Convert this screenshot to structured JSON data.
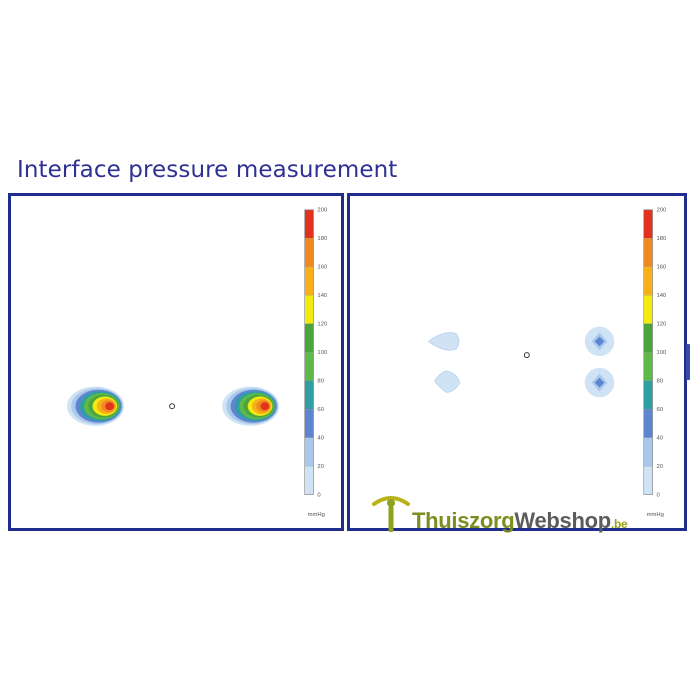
{
  "title": "Interface pressure measurement",
  "colors": {
    "frame": "#1f2d8f",
    "title": "#2e3192",
    "scale": [
      "#ffffff",
      "#cfe3f5",
      "#a9c8ec",
      "#5e86d0",
      "#2f9fa1",
      "#5fb84a",
      "#4aa53d",
      "#f2ea10",
      "#f8b01a",
      "#f08a1e",
      "#e0321e"
    ]
  },
  "watermark": {
    "part1": "Thuiszorg",
    "part2": "Webshop",
    "suffix": ".be"
  },
  "chart_data": [
    {
      "type": "heatmap",
      "title": "",
      "colorbar": {
        "ticks": [
          "200",
          "180",
          "160",
          "140",
          "120",
          "100",
          "80",
          "60",
          "40",
          "20",
          "0"
        ],
        "unit": "mmHg"
      },
      "hotspots": [
        {
          "name": "left-contact",
          "peak_mmHg": 200
        },
        {
          "name": "right-contact",
          "peak_mmHg": 200
        }
      ]
    },
    {
      "type": "heatmap",
      "title": "",
      "colorbar": {
        "ticks": [
          "200",
          "180",
          "160",
          "140",
          "120",
          "100",
          "80",
          "60",
          "40",
          "20",
          "0"
        ],
        "unit": "mmHg"
      },
      "hotspots": [
        {
          "name": "upper-left",
          "peak_mmHg": 20
        },
        {
          "name": "lower-left",
          "peak_mmHg": 20
        },
        {
          "name": "upper-right",
          "peak_mmHg": 40
        },
        {
          "name": "lower-right",
          "peak_mmHg": 40
        }
      ]
    }
  ]
}
